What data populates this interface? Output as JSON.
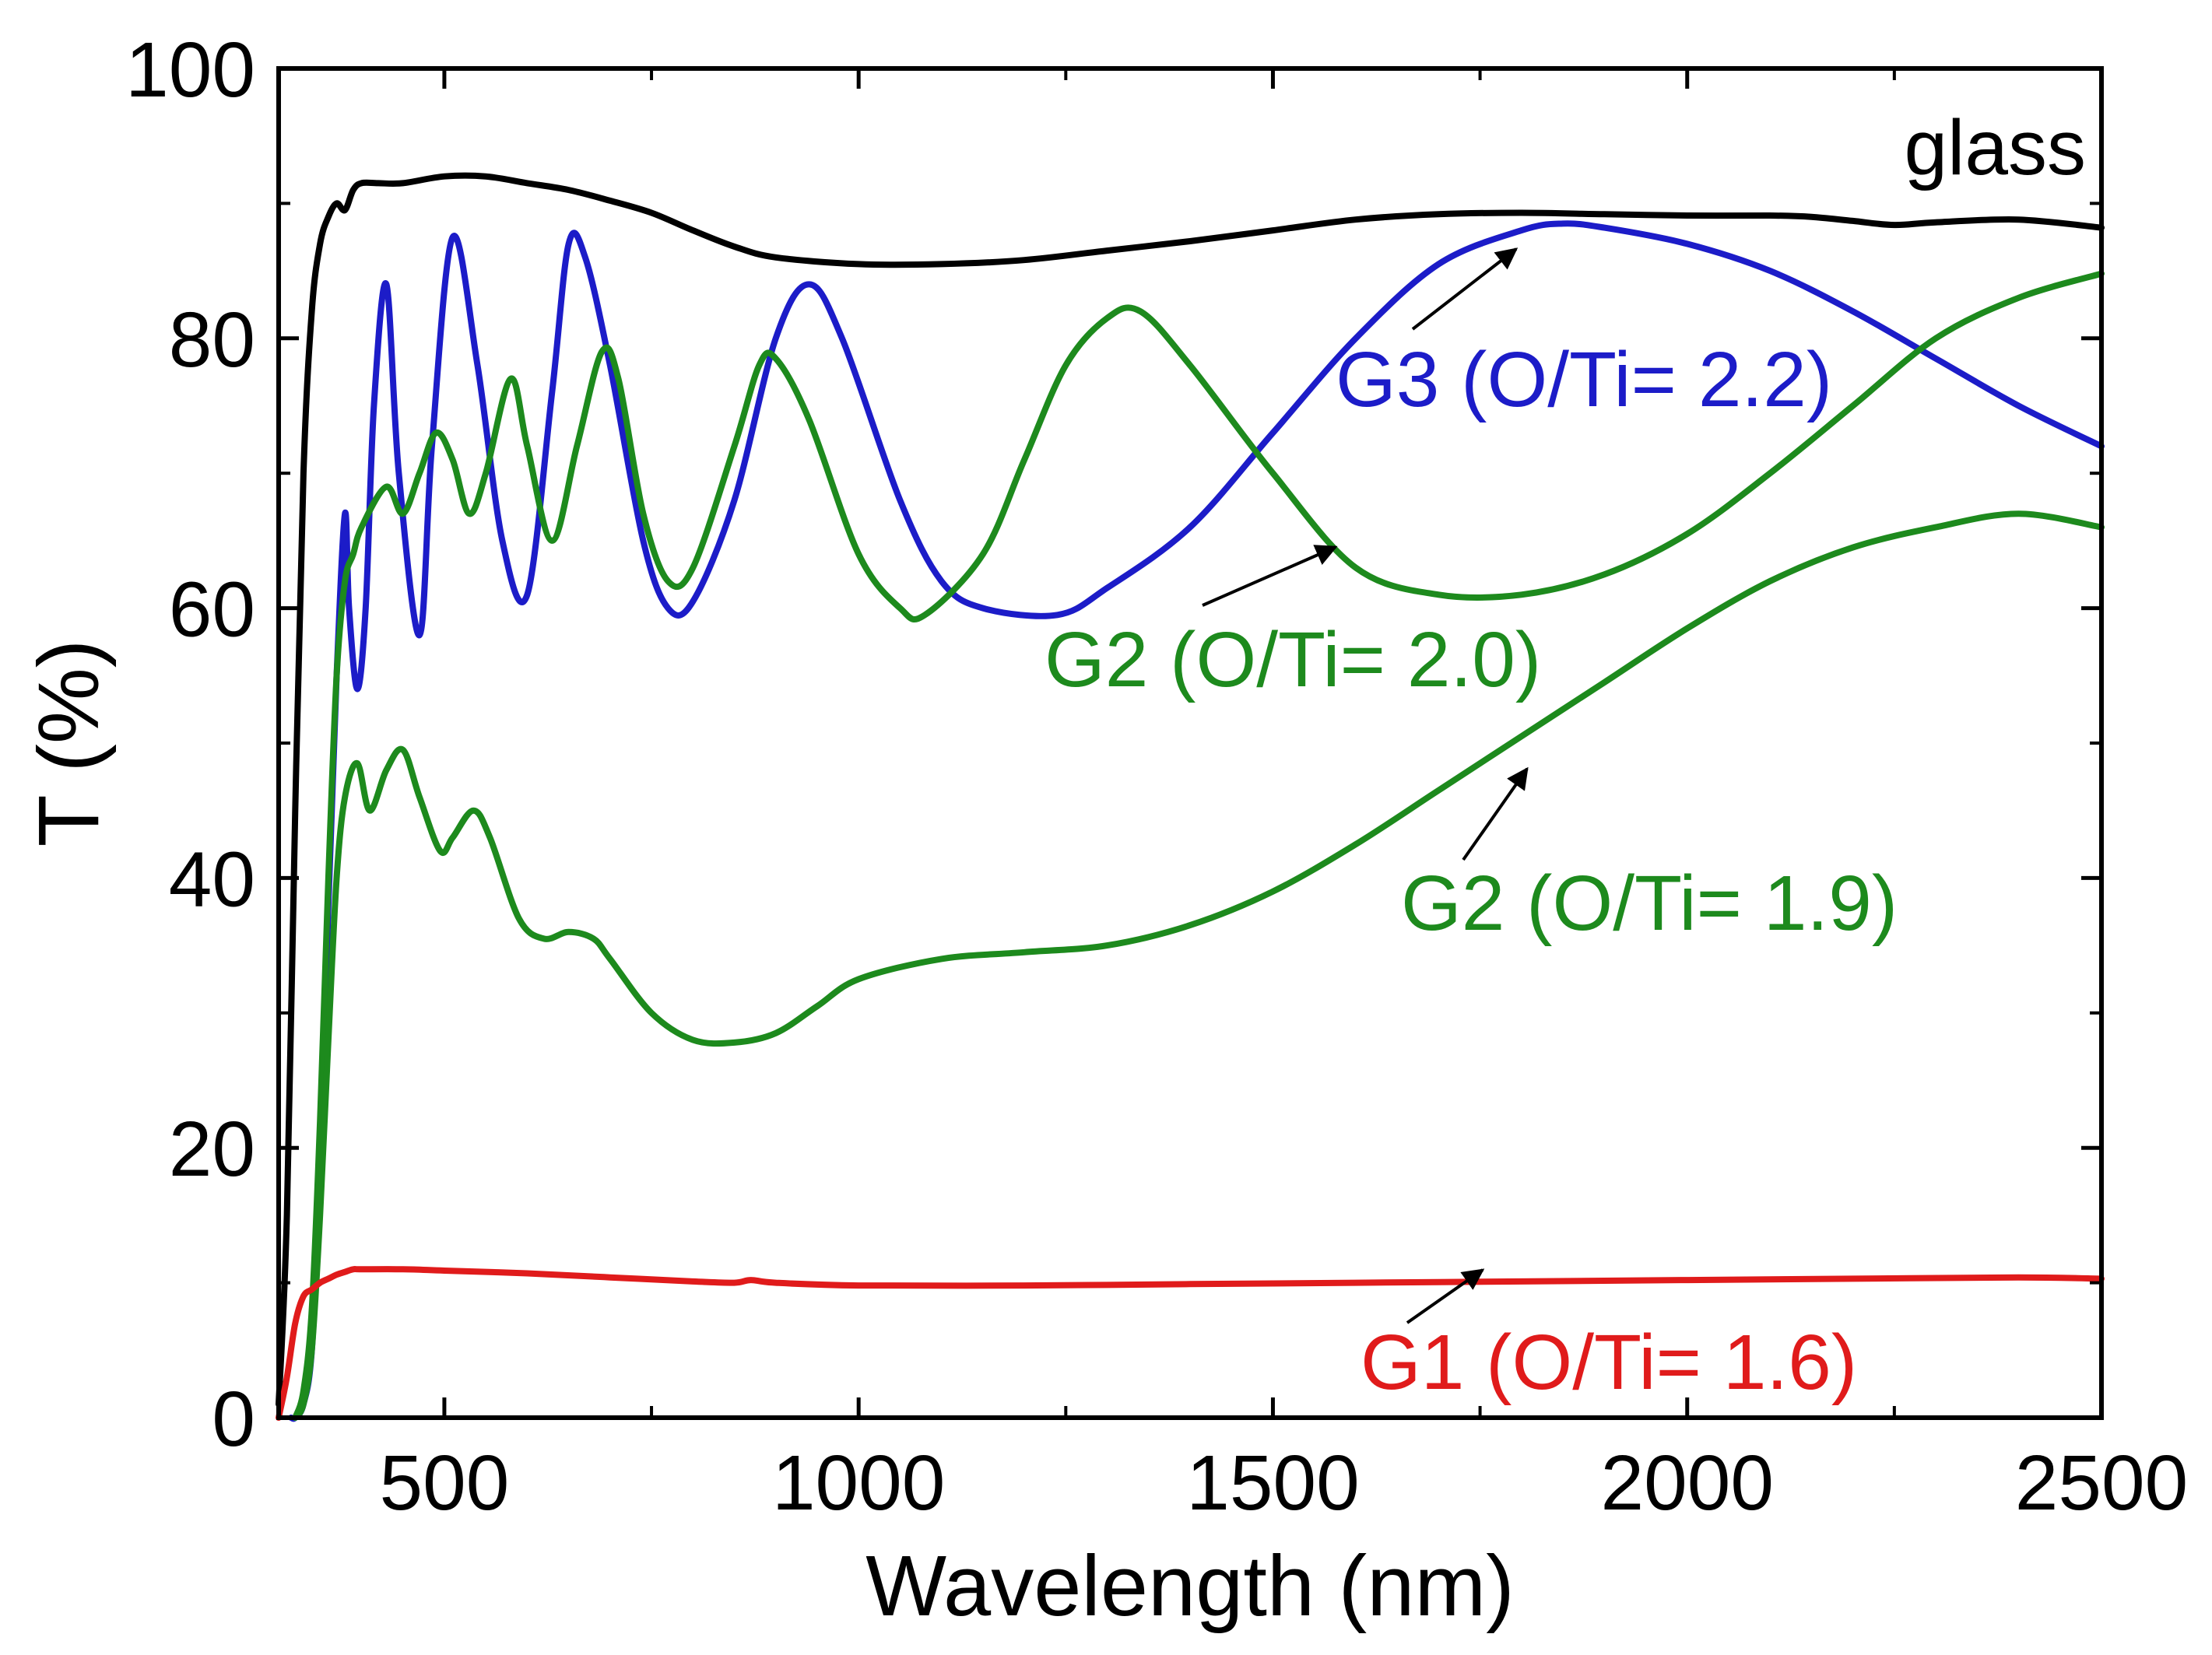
{
  "chart_data": {
    "type": "line",
    "title": "",
    "xlabel": "Wavelength (nm)",
    "ylabel": "T (%)",
    "xlim": [
      300,
      2500
    ],
    "ylim": [
      0,
      100
    ],
    "xticks": [
      500,
      1000,
      1500,
      2000,
      2500
    ],
    "yticks": [
      0,
      20,
      40,
      60,
      80,
      100
    ],
    "grid": false,
    "series": [
      {
        "name": "glass",
        "color": "#000000",
        "x": [
          300,
          310,
          320,
          330,
          340,
          350,
          360,
          370,
          380,
          390,
          400,
          420,
          450,
          500,
          550,
          600,
          650,
          700,
          750,
          800,
          850,
          900,
          1000,
          1100,
          1200,
          1300,
          1400,
          1500,
          1600,
          1700,
          1800,
          1900,
          2000,
          2100,
          2150,
          2200,
          2250,
          2300,
          2400,
          2500
        ],
        "y": [
          1,
          15,
          45,
          70,
          82,
          87,
          89,
          90,
          89.5,
          91,
          91.5,
          91.5,
          91.5,
          92,
          92,
          91.5,
          91,
          90.2,
          89.3,
          88,
          86.8,
          86,
          85.5,
          85.5,
          85.8,
          86.5,
          87.2,
          88,
          88.8,
          89.2,
          89.3,
          89.2,
          89.1,
          89.1,
          89,
          88.7,
          88.4,
          88.6,
          88.8,
          88.2
        ]
      },
      {
        "name": "G3 (O/Ti= 2.2)",
        "color": "#1c1cc8",
        "x": [
          315,
          320,
          330,
          340,
          350,
          360,
          370,
          380,
          385,
          395,
          405,
          415,
          430,
          445,
          470,
          485,
          510,
          540,
          570,
          600,
          630,
          650,
          670,
          700,
          740,
          770,
          800,
          850,
          900,
          940,
          980,
          1050,
          1100,
          1150,
          1240,
          1300,
          1400,
          1500,
          1600,
          1700,
          1800,
          1850,
          1900,
          2000,
          2100,
          2200,
          2300,
          2400,
          2500
        ],
        "y": [
          0,
          0,
          1,
          5,
          18,
          38,
          55,
          67,
          60,
          54,
          60,
          75,
          84,
          70,
          58,
          72,
          87.5,
          78,
          65,
          61,
          76,
          87,
          86,
          78,
          65,
          60,
          60.5,
          68,
          80,
          84,
          80,
          68,
          62,
          60,
          59.5,
          61.5,
          66,
          73,
          80,
          85.5,
          88,
          88.5,
          88.2,
          87,
          85,
          82,
          78.5,
          75,
          72
        ]
      },
      {
        "name": "G2 (O/Ti= 2.0)",
        "color": "#1d8a1d",
        "x": [
          320,
          330,
          340,
          350,
          360,
          370,
          380,
          390,
          400,
          430,
          450,
          470,
          490,
          510,
          530,
          550,
          580,
          600,
          630,
          660,
          690,
          710,
          740,
          770,
          800,
          850,
          880,
          900,
          940,
          1000,
          1050,
          1080,
          1150,
          1200,
          1250,
          1300,
          1340,
          1400,
          1500,
          1600,
          1700,
          1800,
          1900,
          2000,
          2100,
          2200,
          2300,
          2400,
          2500
        ],
        "y": [
          0,
          2,
          8,
          22,
          40,
          55,
          62,
          64,
          66,
          69,
          67,
          70,
          73,
          71,
          67,
          70,
          77,
          72,
          65,
          72,
          79,
          77,
          67,
          62,
          63,
          72,
          78,
          78.5,
          74,
          64,
          60,
          59.5,
          64,
          71,
          78,
          81.5,
          82,
          78,
          70,
          63,
          61,
          61,
          62.5,
          65.5,
          70,
          75,
          80,
          83,
          84.8
        ]
      },
      {
        "name": "G2 (O/Ti= 1.9)",
        "color": "#1d8a1d",
        "x": [
          320,
          330,
          340,
          350,
          360,
          370,
          380,
          395,
          410,
          430,
          450,
          470,
          495,
          510,
          535,
          555,
          590,
          620,
          650,
          680,
          700,
          750,
          800,
          850,
          900,
          950,
          1000,
          1100,
          1200,
          1300,
          1400,
          1500,
          1600,
          1700,
          1800,
          1900,
          2000,
          2100,
          2200,
          2300,
          2400,
          2500
        ],
        "y": [
          0,
          1,
          5,
          15,
          28,
          40,
          46,
          48.5,
          45,
          48,
          49.5,
          46,
          42,
          43,
          45,
          43,
          37,
          35.5,
          36,
          35.5,
          34,
          30,
          28,
          27.8,
          28.5,
          30.5,
          32.5,
          34,
          34.5,
          35,
          36.5,
          39,
          42.5,
          46.5,
          50.5,
          54.5,
          58.5,
          62,
          64.5,
          66,
          67,
          66
        ]
      },
      {
        "name": "G1 (O/Ti= 1.6)",
        "color": "#e01b1b",
        "x": [
          300,
          310,
          320,
          330,
          340,
          350,
          360,
          370,
          380,
          390,
          400,
          450,
          500,
          600,
          700,
          800,
          850,
          870,
          900,
          1000,
          1200,
          1400,
          1600,
          1800,
          2000,
          2200,
          2400,
          2500
        ],
        "y": [
          0,
          3,
          7,
          9,
          9.5,
          10,
          10.3,
          10.6,
          10.8,
          11,
          11,
          11,
          10.9,
          10.7,
          10.4,
          10.1,
          10,
          10.2,
          10,
          9.8,
          9.8,
          9.9,
          10,
          10.1,
          10.2,
          10.3,
          10.4,
          10.3
        ]
      }
    ],
    "annotations": [
      {
        "name": "glass-label",
        "text": "glass",
        "color": "#000000"
      },
      {
        "name": "g3-label",
        "text": "G3 (O/Ti= 2.2)",
        "color": "#1c1cc8",
        "arrow_to": [
          1840,
          88
        ]
      },
      {
        "name": "g2-20-label",
        "text": "G2 (O/Ti= 2.0)",
        "color": "#1d8a1d",
        "arrow_to": [
          1600,
          65.5
        ]
      },
      {
        "name": "g2-19-label",
        "text": "G2 (O/Ti= 1.9)",
        "color": "#1d8a1d",
        "arrow_to": [
          1800,
          48.5
        ]
      },
      {
        "name": "g1-label",
        "text": "G1 (O/Ti= 1.6)",
        "color": "#e01b1b",
        "arrow_to": [
          1770,
          10.8
        ]
      }
    ]
  }
}
